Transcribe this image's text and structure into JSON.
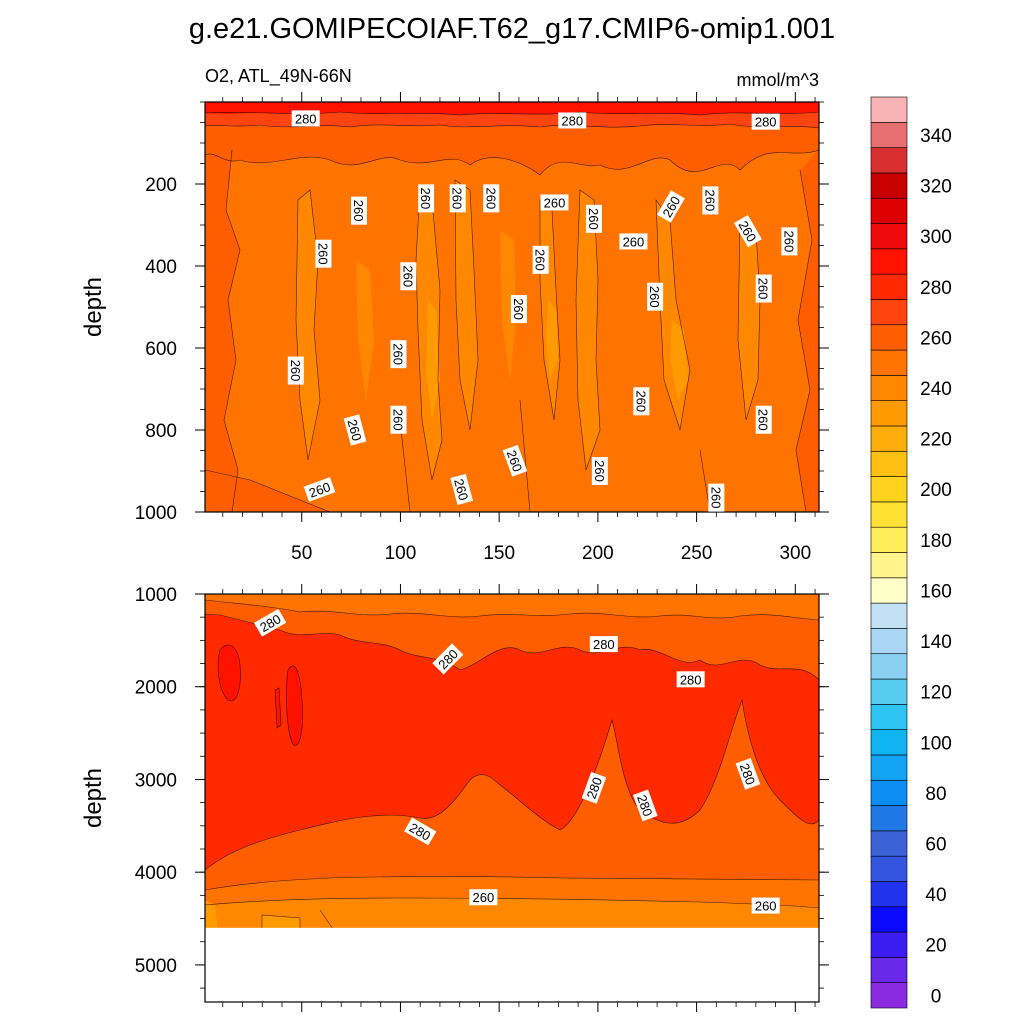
{
  "chart_data": {
    "type": "contour",
    "title": "g.e21.GOMIPECOIAF.T62_g17.CMIP6-omip1.001",
    "variable_label": "O2, ATL_49N-66N",
    "units_label": "mmol/m^3",
    "panels": [
      {
        "name": "upper",
        "ylabel": "depth",
        "ylim": [
          1000,
          0
        ],
        "yticks": [
          "200",
          "400",
          "600",
          "800",
          "1000"
        ],
        "ytick_values": [
          200,
          400,
          600,
          800,
          1000
        ],
        "xlim": [
          1,
          312
        ],
        "xticks": [
          "50",
          "100",
          "150",
          "200",
          "250",
          "300"
        ],
        "xtick_values": [
          50,
          100,
          150,
          200,
          250,
          300
        ],
        "contour_labels": [
          {
            "text": "280",
            "x": 52,
            "y": 40,
            "angle": 0
          },
          {
            "text": "280",
            "x": 187,
            "y": 45,
            "angle": 0
          },
          {
            "text": "280",
            "x": 285,
            "y": 48,
            "angle": 0
          },
          {
            "text": "260",
            "x": 79,
            "y": 265,
            "angle": 90
          },
          {
            "text": "260",
            "x": 113,
            "y": 235,
            "angle": 90
          },
          {
            "text": "260",
            "x": 129,
            "y": 235,
            "angle": 90
          },
          {
            "text": "260",
            "x": 146,
            "y": 235,
            "angle": 90
          },
          {
            "text": "260",
            "x": 178,
            "y": 245,
            "angle": 0
          },
          {
            "text": "260",
            "x": 198,
            "y": 285,
            "angle": 90
          },
          {
            "text": "260",
            "x": 237,
            "y": 255,
            "angle": -60
          },
          {
            "text": "260",
            "x": 257,
            "y": 240,
            "angle": 90
          },
          {
            "text": "260",
            "x": 276,
            "y": 315,
            "angle": 60
          },
          {
            "text": "260",
            "x": 297,
            "y": 340,
            "angle": 90
          },
          {
            "text": "260",
            "x": 61,
            "y": 370,
            "angle": 90
          },
          {
            "text": "260",
            "x": 104,
            "y": 425,
            "angle": 90
          },
          {
            "text": "260",
            "x": 171,
            "y": 385,
            "angle": 90
          },
          {
            "text": "260",
            "x": 218,
            "y": 340,
            "angle": 0
          },
          {
            "text": "260",
            "x": 229,
            "y": 475,
            "angle": 90
          },
          {
            "text": "260",
            "x": 284,
            "y": 455,
            "angle": 90
          },
          {
            "text": "260",
            "x": 160,
            "y": 505,
            "angle": 90
          },
          {
            "text": "260",
            "x": 47,
            "y": 655,
            "angle": 90
          },
          {
            "text": "260",
            "x": 99,
            "y": 615,
            "angle": 90
          },
          {
            "text": "260",
            "x": 77,
            "y": 800,
            "angle": 75
          },
          {
            "text": "260",
            "x": 99,
            "y": 775,
            "angle": 90
          },
          {
            "text": "260",
            "x": 222,
            "y": 730,
            "angle": 90
          },
          {
            "text": "260",
            "x": 284,
            "y": 775,
            "angle": 90
          },
          {
            "text": "260",
            "x": 59,
            "y": 945,
            "angle": -20
          },
          {
            "text": "260",
            "x": 131,
            "y": 945,
            "angle": 75
          },
          {
            "text": "260",
            "x": 158,
            "y": 875,
            "angle": 70
          },
          {
            "text": "260",
            "x": 201,
            "y": 900,
            "angle": 90
          },
          {
            "text": "260",
            "x": 260,
            "y": 965,
            "angle": 90
          }
        ]
      },
      {
        "name": "lower",
        "ylabel": "depth",
        "ylim": [
          5400,
          1000
        ],
        "yticks": [
          "1000",
          "2000",
          "3000",
          "4000",
          "5000"
        ],
        "ytick_values": [
          1000,
          2000,
          3000,
          4000,
          5000
        ],
        "xlim": [
          1,
          312
        ],
        "bottom_depth": 4600,
        "contour_labels": [
          {
            "text": "280",
            "x": 34,
            "y": 1310,
            "angle": -30
          },
          {
            "text": "280",
            "x": 124,
            "y": 1700,
            "angle": -45
          },
          {
            "text": "280",
            "x": 203,
            "y": 1540,
            "angle": 0
          },
          {
            "text": "280",
            "x": 247,
            "y": 1920,
            "angle": 0
          },
          {
            "text": "280",
            "x": 198,
            "y": 3090,
            "angle": -70
          },
          {
            "text": "280",
            "x": 224,
            "y": 3280,
            "angle": 70
          },
          {
            "text": "280",
            "x": 276,
            "y": 2940,
            "angle": 70
          },
          {
            "text": "280",
            "x": 110,
            "y": 3560,
            "angle": 30
          },
          {
            "text": "260",
            "x": 142,
            "y": 4270,
            "angle": 0
          },
          {
            "text": "260",
            "x": 285,
            "y": 4360,
            "angle": 0
          }
        ]
      }
    ],
    "colorbar": {
      "levels": [
        "0",
        "20",
        "40",
        "60",
        "80",
        "100",
        "120",
        "140",
        "160",
        "180",
        "200",
        "220",
        "240",
        "260",
        "280",
        "300",
        "320",
        "340"
      ],
      "colors": [
        "#8a2be2",
        "#6a28e8",
        "#3c1cf0",
        "#0a0aff",
        "#2233ee",
        "#3355e0",
        "#3b63d8",
        "#1f78e6",
        "#0c8df4",
        "#12a3f5",
        "#0fb4f0",
        "#2ec4f4",
        "#58ccf0",
        "#8ad0f0",
        "#aad8f4",
        "#c2e2f4",
        "#ffffc8",
        "#fff58c",
        "#ffed5a",
        "#ffe033",
        "#ffd21e",
        "#ffc014",
        "#ffad0a",
        "#ff9a00",
        "#ff8800",
        "#ff7400",
        "#ff5e00",
        "#ff4410",
        "#ff2a00",
        "#ff1200",
        "#ee0a0a",
        "#dd0000",
        "#c80000",
        "#d83030",
        "#e87070",
        "#f8b4b4"
      ]
    }
  }
}
